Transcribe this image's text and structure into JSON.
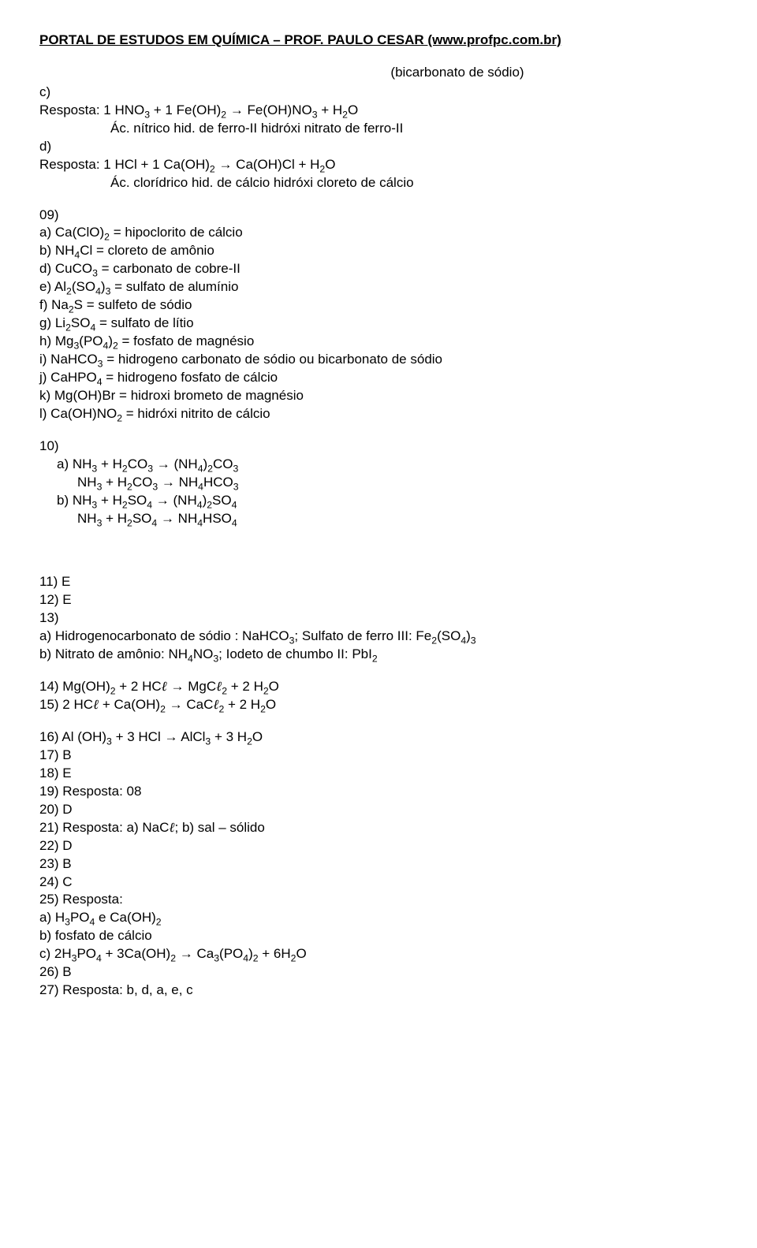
{
  "header": "PORTAL DE ESTUDOS EM QUÍMICA – PROF. PAULO CESAR (www.profpc.com.br)",
  "bicarb_note": "(bicarbonato de sódio)",
  "c_label": "c)",
  "c_resposta": "Resposta:   1 HNO₃   +   1 Fe(OH)₂   →     Fe(OH)NO₃     +     H₂O",
  "c_sub": "Ác. nítrico      hid. de ferro-II     hidróxi nitrato de ferro-II",
  "d_label": "d)",
  "d_resposta": "Resposta:   1 HCl   +   1 Ca(OH)₂   →     Ca(OH)Cl    +   H₂O",
  "d_sub": "Ác. clorídrico     hid. de cálcio       hidróxi cloreto de cálcio",
  "q09_label": "09)",
  "q09_a": "a) Ca(ClO)₂ = hipoclorito de cálcio",
  "q09_b": "b) NH₄Cl = cloreto de amônio",
  "q09_d": "d) CuCO₃ = carbonato de cobre-II",
  "q09_e": "e) Al₂(SO₄)₃ = sulfato de alumínio",
  "q09_f": "f) Na₂S = sulfeto de sódio",
  "q09_g": "g) Li₂SO₄ = sulfato de lítio",
  "q09_h": "h) Mg₃(PO₄)₂ = fosfato de magnésio",
  "q09_i": "i) NaHCO₃ = hidrogeno carbonato de sódio ou bicarbonato de sódio",
  "q09_j": "j) CaHPO₄ = hidrogeno fosfato de cálcio",
  "q09_k": "k) Mg(OH)Br = hidroxi brometo de magnésio",
  "q09_l": "l) Ca(OH)NO₂ = hidróxi nitrito de cálcio",
  "q10_label": "10)",
  "q10_a1": "a)  NH₃ + H₂CO₃ → (NH₄)₂CO₃",
  "q10_a2": "NH₃ + H₂CO₃ → NH₄HCO₃",
  "q10_b1": "b)  NH₃ + H₂SO₄ → (NH₄)₂SO₄",
  "q10_b2": "NH₃ + H₂SO₄ → NH₄HSO₄",
  "q11": "11) E",
  "q12": "12) E",
  "q13_label": "13)",
  "q13_a": "a) Hidrogenocarbonato de sódio : NaHCO₃; Sulfato de ferro III: Fe₂(SO₄)₃",
  "q13_b": "b) Nitrato de amônio: NH₄NO₃; Iodeto de chumbo II: PbI₂",
  "q14": "14) Mg(OH)₂ + 2 HCℓ → MgCℓ₂ + 2 H₂O",
  "q15": "15) 2 HCℓ + Ca(OH)₂ → CaCℓ₂ + 2 H₂O",
  "q16": "16) Al (OH)₃ + 3 HCl → AlCl₃ + 3 H₂O",
  "q17": "17) B",
  "q18": "18) E",
  "q19": "19) Resposta: 08",
  "q20": "20) D",
  "q21": "21) Resposta: a) NaCℓ; b) sal – sólido",
  "q22": "22) D",
  "q23": "23) B",
  "q24": "24) C",
  "q25_label": "25) Resposta:",
  "q25_a": "a) H₃PO₄ e Ca(OH)₂",
  "q25_b": "b) fosfato de cálcio",
  "q25_c": "c) 2H₃PO₄ + 3Ca(OH)₂ → Ca₃(PO₄)₂ + 6H₂O",
  "q26": "26) B",
  "q27": "27) Resposta: b, d, a, e, c"
}
